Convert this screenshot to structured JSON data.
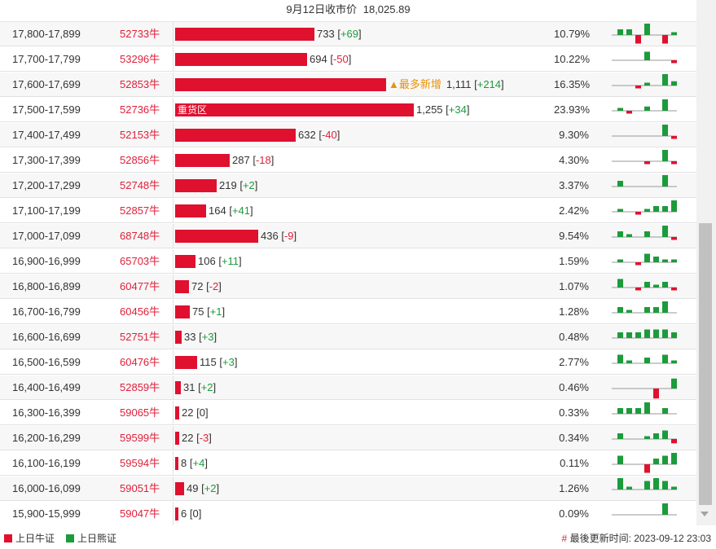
{
  "header": {
    "date": "9月12日收市价",
    "close_price": "18,025.89"
  },
  "colors": {
    "bull": "#e0102f",
    "bear": "#1c9b3b",
    "badge": "#e8920c"
  },
  "rows": [
    {
      "range": "17,800-17,899",
      "code": "52733",
      "suffix": "牛",
      "count": "733",
      "delta": "+69",
      "pct": "10.79%",
      "bar_value": 733,
      "spark": [
        2,
        2,
        -3,
        4,
        0,
        -3,
        1
      ]
    },
    {
      "range": "17,700-17,799",
      "code": "53296",
      "suffix": "牛",
      "count": "694",
      "delta": "-50",
      "pct": "10.22%",
      "bar_value": 694,
      "spark": [
        0,
        0,
        0,
        3,
        0,
        0,
        -1
      ]
    },
    {
      "range": "17,600-17,699",
      "code": "52853",
      "suffix": "牛",
      "count": "1,111",
      "delta": "+214",
      "pct": "16.35%",
      "bar_value": 1111,
      "spark": [
        0,
        0,
        -1,
        1,
        0,
        4,
        1.5
      ],
      "badge": "▲最多新增"
    },
    {
      "range": "17,500-17,599",
      "code": "52736",
      "suffix": "牛",
      "count": "1,255",
      "delta": "+34",
      "pct": "23.93%",
      "bar_value": 1255,
      "spark": [
        1,
        -1,
        0,
        1.5,
        0,
        4,
        0
      ],
      "bar_label": "重货区"
    },
    {
      "range": "17,400-17,499",
      "code": "52153",
      "suffix": "牛",
      "count": "632",
      "delta": "-40",
      "pct": "9.30%",
      "bar_value": 632,
      "spark": [
        0,
        0,
        0,
        0,
        0,
        4,
        -1
      ]
    },
    {
      "range": "17,300-17,399",
      "code": "52856",
      "suffix": "牛",
      "count": "287",
      "delta": "-18",
      "pct": "4.30%",
      "bar_value": 287,
      "spark": [
        0,
        0,
        0,
        -1,
        0,
        4,
        -1
      ]
    },
    {
      "range": "17,200-17,299",
      "code": "52748",
      "suffix": "牛",
      "count": "219",
      "delta": "+2",
      "pct": "3.37%",
      "bar_value": 219,
      "spark": [
        2,
        0,
        0,
        0,
        0,
        4,
        0
      ]
    },
    {
      "range": "17,100-17,199",
      "code": "52857",
      "suffix": "牛",
      "count": "164",
      "delta": "+41",
      "pct": "2.42%",
      "bar_value": 164,
      "spark": [
        1,
        0,
        -1,
        1,
        2,
        2,
        4
      ]
    },
    {
      "range": "17,000-17,099",
      "code": "68748",
      "suffix": "牛",
      "count": "436",
      "delta": "-9",
      "pct": "9.54%",
      "bar_value": 436,
      "spark": [
        2,
        1,
        0,
        2,
        0,
        4,
        -1
      ]
    },
    {
      "range": "16,900-16,999",
      "code": "65703",
      "suffix": "牛",
      "count": "106",
      "delta": "+11",
      "pct": "1.59%",
      "bar_value": 106,
      "spark": [
        1,
        0,
        -1,
        3,
        2,
        1,
        1
      ]
    },
    {
      "range": "16,800-16,899",
      "code": "60477",
      "suffix": "牛",
      "count": "72",
      "delta": "-2",
      "pct": "1.07%",
      "bar_value": 72,
      "spark": [
        3,
        0,
        -1,
        2,
        1,
        2,
        -1
      ]
    },
    {
      "range": "16,700-16,799",
      "code": "60456",
      "suffix": "牛",
      "count": "75",
      "delta": "+1",
      "pct": "1.28%",
      "bar_value": 75,
      "spark": [
        2,
        1,
        0,
        2,
        2,
        4,
        0
      ]
    },
    {
      "range": "16,600-16,699",
      "code": "52751",
      "suffix": "牛",
      "count": "33",
      "delta": "+3",
      "pct": "0.48%",
      "bar_value": 33,
      "spark": [
        2,
        2,
        2,
        3,
        3,
        3,
        2
      ]
    },
    {
      "range": "16,500-16,599",
      "code": "60476",
      "suffix": "牛",
      "count": "115",
      "delta": "+3",
      "pct": "2.77%",
      "bar_value": 115,
      "spark": [
        3,
        1,
        0,
        2,
        0,
        3,
        1
      ]
    },
    {
      "range": "16,400-16,499",
      "code": "52859",
      "suffix": "牛",
      "count": "31",
      "delta": "+2",
      "pct": "0.46%",
      "bar_value": 31,
      "spark": [
        0,
        0,
        0,
        0,
        -3.5,
        0,
        3.5
      ]
    },
    {
      "range": "16,300-16,399",
      "code": "59065",
      "suffix": "牛",
      "count": "22",
      "delta": "0",
      "pct": "0.33%",
      "bar_value": 22,
      "spark": [
        2,
        2,
        2,
        4,
        0,
        2,
        0
      ]
    },
    {
      "range": "16,200-16,299",
      "code": "59599",
      "suffix": "牛",
      "count": "22",
      "delta": "-3",
      "pct": "0.34%",
      "bar_value": 22,
      "spark": [
        2,
        0,
        0,
        1,
        2,
        3,
        -1.5
      ]
    },
    {
      "range": "16,100-16,199",
      "code": "59594",
      "suffix": "牛",
      "count": "8",
      "delta": "+4",
      "pct": "0.11%",
      "bar_value": 8,
      "spark": [
        3,
        0,
        0,
        -3,
        2,
        3,
        4
      ]
    },
    {
      "range": "16,000-16,099",
      "code": "59051",
      "suffix": "牛",
      "count": "49",
      "delta": "+2",
      "pct": "1.26%",
      "bar_value": 49,
      "spark": [
        4,
        1,
        0,
        3,
        4,
        3,
        1
      ]
    },
    {
      "range": "15,900-15,999",
      "code": "59047",
      "suffix": "牛",
      "count": "6",
      "delta": "0",
      "pct": "0.09%",
      "bar_value": 6,
      "spark": [
        0,
        0,
        0,
        0,
        0,
        4,
        0
      ]
    }
  ],
  "legend": {
    "bull": "上日牛证",
    "bear": "上日熊证"
  },
  "footer": {
    "hash": "#",
    "update_label": "最後更新时间:",
    "update_time": "2023-09-12 23:03"
  }
}
